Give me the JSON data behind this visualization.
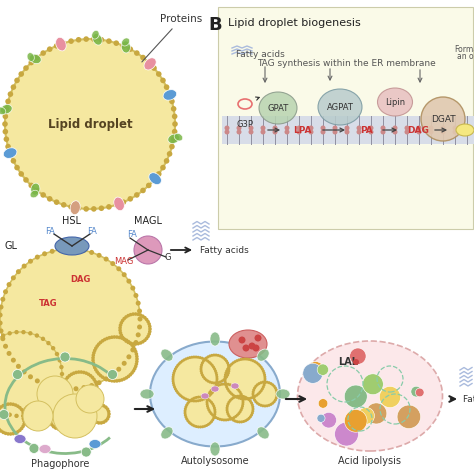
{
  "bg_color": "#ffffff",
  "panel_b_label": "B",
  "title_biogenesis": "Lipid droplet biogenesis",
  "subtitle_tag": "TAG synthesis within the ER membrane",
  "label_proteins": "Proteins",
  "label_lipid_droplet": "Lipid droplet",
  "label_fatty_acids_er": "Fatty acids",
  "label_forma": "Forma-\nan oil",
  "label_g3p": "G3P",
  "label_hsl": "HSL",
  "label_magl": "MAGL",
  "label_atgl": "GL",
  "label_fa": "FA",
  "label_dag": "DAG",
  "label_tag": "TAG",
  "label_mag": "MAG",
  "label_g": "G",
  "label_phagophore": "Phagophore",
  "label_autolysosome": "Autolysosome",
  "label_acid_lipolysis": "Acid lipolysis",
  "label_lal": "LAL",
  "label_fatty_acids_lip": "Fatty acids",
  "label_fatty_acids_acid": "Fatty acids",
  "colors": {
    "ld_fill": "#f5e8a0",
    "ld_edge": "#d4c060",
    "ld_dot": "#c8a840",
    "er_bg": "#f8f8e8",
    "er_band": "#d8dde8",
    "er_band_edge": "#b0b8c8",
    "er_stick": "#9090a0",
    "er_head": "#cc8888",
    "gpat_fill": "#b8d4b0",
    "gpat_edge": "#889888",
    "agpat_fill": "#b8cccc",
    "agpat_edge": "#7898a0",
    "lipin_fill": "#e8c0c0",
    "lipin_edge": "#c09090",
    "dgat_fill": "#e0c8b0",
    "dgat_edge": "#b09060",
    "g3p_oval": "#e87070",
    "inter_red": "#cc3333",
    "arrow_dark": "#333333",
    "protein_green": "#7ab648",
    "protein_blue": "#5b9bd5",
    "protein_pink": "#e890a0",
    "protein_peach": "#d4a080",
    "hsl_fill": "#7899bb",
    "magl_fill": "#dd99bb",
    "phago_outline": "#88bb88",
    "auto_fill": "#ddeeff",
    "auto_edge": "#88aacc",
    "red_blob": "#e09090",
    "acid_fill": "#fce8ea",
    "acid_edge": "#ddaaaa",
    "text_dark": "#333333",
    "text_red": "#cc3333",
    "text_blue": "#5588cc",
    "fatty_lines": "#aabbdd",
    "forming_fill": "#f5e880",
    "forming_edge": "#c8b850"
  }
}
